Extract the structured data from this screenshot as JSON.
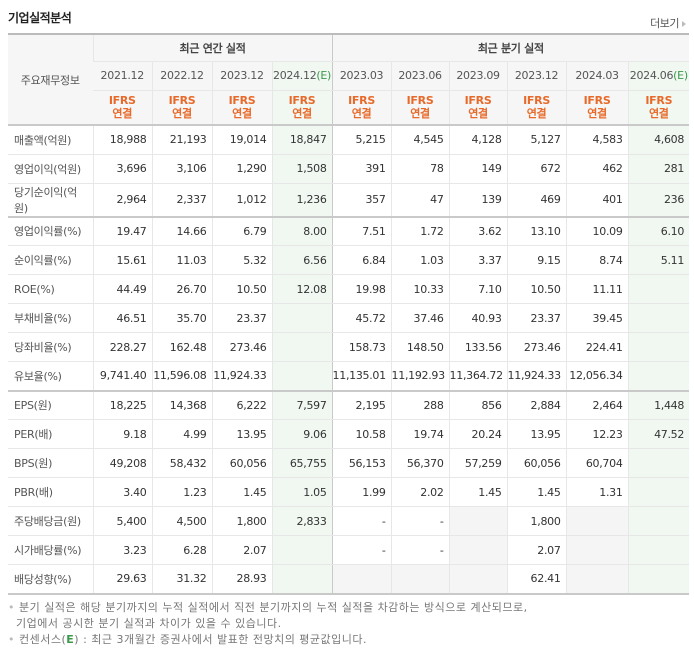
{
  "section_title": "기업실적분석",
  "more_link": "더보기",
  "table": {
    "row_header": "주요재무정보",
    "annual_group": "최근 연간 실적",
    "quarter_group": "최근 분기 실적",
    "annual_columns": [
      {
        "period": "2021.12",
        "est": "",
        "basis1": "IFRS",
        "basis2": "연결"
      },
      {
        "period": "2022.12",
        "est": "",
        "basis1": "IFRS",
        "basis2": "연결"
      },
      {
        "period": "2023.12",
        "est": "",
        "basis1": "IFRS",
        "basis2": "연결"
      },
      {
        "period": "2024.12",
        "est": "(E)",
        "basis1": "IFRS",
        "basis2": "연결"
      }
    ],
    "quarter_columns": [
      {
        "period": "2023.03",
        "est": "",
        "basis1": "IFRS",
        "basis2": "연결"
      },
      {
        "period": "2023.06",
        "est": "",
        "basis1": "IFRS",
        "basis2": "연결"
      },
      {
        "period": "2023.09",
        "est": "",
        "basis1": "IFRS",
        "basis2": "연결"
      },
      {
        "period": "2023.12",
        "est": "",
        "basis1": "IFRS",
        "basis2": "연결"
      },
      {
        "period": "2024.03",
        "est": "",
        "basis1": "IFRS",
        "basis2": "연결"
      },
      {
        "period": "2024.06",
        "est": "(E)",
        "basis1": "IFRS",
        "basis2": "연결"
      }
    ],
    "rows": [
      {
        "label": "매출액(억원)",
        "v": [
          "18,988",
          "21,193",
          "19,014",
          "18,847",
          "5,215",
          "4,545",
          "4,128",
          "5,127",
          "4,583",
          "4,608"
        ]
      },
      {
        "label": "영업이익(억원)",
        "v": [
          "3,696",
          "3,106",
          "1,290",
          "1,508",
          "391",
          "78",
          "149",
          "672",
          "462",
          "281"
        ]
      },
      {
        "label": "당기순이익(억원)",
        "v": [
          "2,964",
          "2,337",
          "1,012",
          "1,236",
          "357",
          "47",
          "139",
          "469",
          "401",
          "236"
        ]
      },
      {
        "label": "영업이익률(%)",
        "v": [
          "19.47",
          "14.66",
          "6.79",
          "8.00",
          "7.51",
          "1.72",
          "3.62",
          "13.10",
          "10.09",
          "6.10"
        ]
      },
      {
        "label": "순이익률(%)",
        "v": [
          "15.61",
          "11.03",
          "5.32",
          "6.56",
          "6.84",
          "1.03",
          "3.37",
          "9.15",
          "8.74",
          "5.11"
        ]
      },
      {
        "label": "ROE(%)",
        "v": [
          "44.49",
          "26.70",
          "10.50",
          "12.08",
          "19.98",
          "10.33",
          "7.10",
          "10.50",
          "11.11",
          ""
        ]
      },
      {
        "label": "부채비율(%)",
        "v": [
          "46.51",
          "35.70",
          "23.37",
          "",
          "45.72",
          "37.46",
          "40.93",
          "23.37",
          "39.45",
          ""
        ]
      },
      {
        "label": "당좌비율(%)",
        "v": [
          "228.27",
          "162.48",
          "273.46",
          "",
          "158.73",
          "148.50",
          "133.56",
          "273.46",
          "224.41",
          ""
        ]
      },
      {
        "label": "유보율(%)",
        "v": [
          "9,741.40",
          "11,596.08",
          "11,924.33",
          "",
          "11,135.01",
          "11,192.93",
          "11,364.72",
          "11,924.33",
          "12,056.34",
          ""
        ]
      },
      {
        "label": "EPS(원)",
        "v": [
          "18,225",
          "14,368",
          "6,222",
          "7,597",
          "2,195",
          "288",
          "856",
          "2,884",
          "2,464",
          "1,448"
        ]
      },
      {
        "label": "PER(배)",
        "v": [
          "9.18",
          "4.99",
          "13.95",
          "9.06",
          "10.58",
          "19.74",
          "20.24",
          "13.95",
          "12.23",
          "47.52"
        ]
      },
      {
        "label": "BPS(원)",
        "v": [
          "49,208",
          "58,432",
          "60,056",
          "65,755",
          "56,153",
          "56,370",
          "57,259",
          "60,056",
          "60,704",
          ""
        ]
      },
      {
        "label": "PBR(배)",
        "v": [
          "3.40",
          "1.23",
          "1.45",
          "1.05",
          "1.99",
          "2.02",
          "1.45",
          "1.45",
          "1.31",
          ""
        ]
      },
      {
        "label": "주당배당금(원)",
        "v": [
          "5,400",
          "4,500",
          "1,800",
          "2,833",
          "-",
          "-",
          "",
          "1,800",
          "",
          ""
        ]
      },
      {
        "label": "시가배당률(%)",
        "v": [
          "3.23",
          "6.28",
          "2.07",
          "",
          "-",
          "-",
          "",
          "2.07",
          "",
          ""
        ]
      },
      {
        "label": "배당성향(%)",
        "v": [
          "29.63",
          "31.32",
          "28.93",
          "",
          "",
          "",
          "",
          "62.41",
          "",
          ""
        ]
      }
    ]
  },
  "notes": {
    "line1": "분기 실적은 해당 분기까지의 누적 실적에서 직전 분기까지의 누적 실적을 차감하는 방식으로 계산되므로,",
    "line2": "기업에서 공시한 분기 실적과 차이가 있을 수 있습니다.",
    "line3_prefix": "컨센서스(",
    "line3_e": "E",
    "line3_suffix": ") : 최근 3개월간 증권사에서 발표한 전망치의 평균값입니다."
  }
}
